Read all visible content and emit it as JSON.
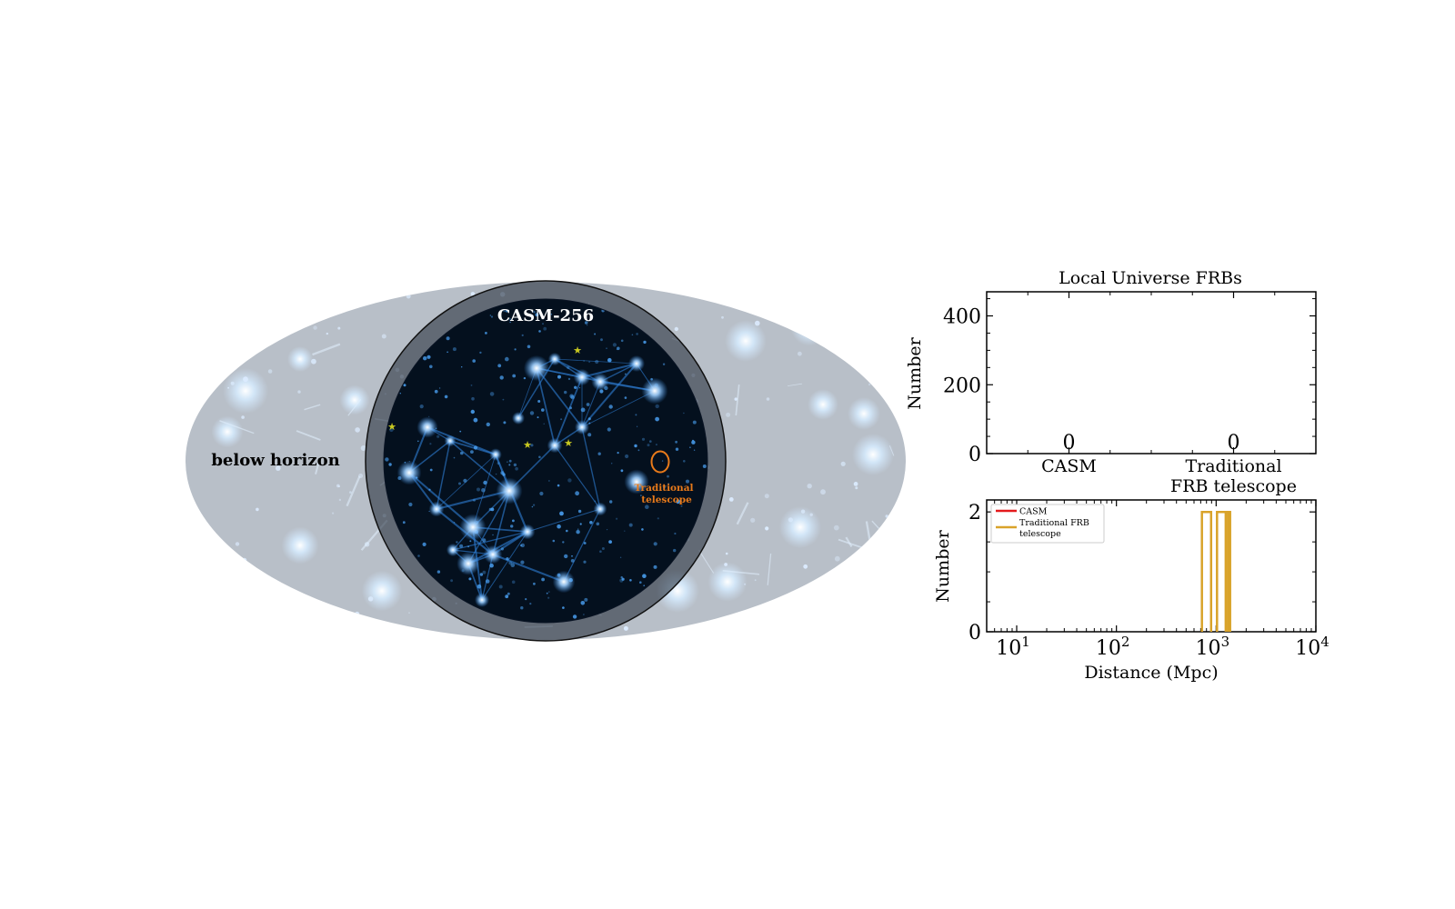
{
  "sky_map": {
    "instrument_label": "CASM-256",
    "horizon_label": "below horizon",
    "telescope_label_line1": "Traditional",
    "telescope_label_line2": "telescope",
    "colors": {
      "sky_background": "#b8bfc8",
      "cosmic_web": "#3a8fe8",
      "field_dark": "#04101e",
      "horizon_overlay": "#1c2431",
      "star_marker": "#c8c820",
      "telescope_marker": "#e87a1a"
    }
  },
  "chart_data": [
    {
      "type": "bar",
      "title": "Local Universe FRBs",
      "categories": [
        "CASM",
        "Traditional\nFRB telescope"
      ],
      "category_lines": [
        [
          "CASM"
        ],
        [
          "Traditional",
          "FRB telescope"
        ]
      ],
      "values": [
        0,
        0
      ],
      "value_labels": [
        "0",
        "0"
      ],
      "ylabel": "Number",
      "xlabel": "",
      "ylim": [
        0,
        470
      ],
      "yticks": [
        0,
        200,
        400
      ],
      "ytick_labels": [
        "0",
        "200",
        "400"
      ],
      "grid": false
    },
    {
      "type": "histogram",
      "title": "",
      "xlabel": "Distance (Mpc)",
      "ylabel": "Number",
      "xscale": "log",
      "xlim": [
        5,
        10000
      ],
      "ylim": [
        0,
        2.2
      ],
      "yticks": [
        0,
        2
      ],
      "ytick_labels": [
        "0",
        "2"
      ],
      "xticks": [
        10,
        100,
        1000,
        10000
      ],
      "xtick_base": "10",
      "xtick_exponents": [
        "1",
        "2",
        "3",
        "4"
      ],
      "legend_position": "top-left",
      "series": [
        {
          "name": "CASM",
          "color": "#e41a1c",
          "bins": []
        },
        {
          "name": "Traditional FRB telescope",
          "legend_lines": [
            "Traditional FRB",
            "telescope"
          ],
          "color": "#d9a32a",
          "bins": [
            [
              720,
              890,
              2
            ],
            [
              1020,
              1250,
              2
            ],
            [
              1250,
              1320,
              2
            ],
            [
              1320,
              1380,
              2
            ]
          ]
        }
      ],
      "grid": false
    }
  ]
}
